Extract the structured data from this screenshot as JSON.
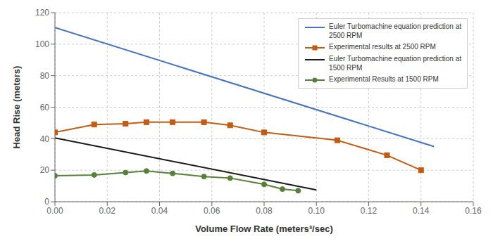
{
  "chart_data": {
    "type": "line",
    "xlabel": "Volume Flow Rate (meters³/sec)",
    "ylabel": "Head Rise (meters)",
    "xlim": [
      0.0,
      0.16
    ],
    "ylim": [
      0,
      120
    ],
    "xticks": [
      {
        "value": 0.0,
        "label": "0.00"
      },
      0.02,
      0.04,
      0.06,
      0.08,
      {
        "value": 0.1,
        "label": "0.10"
      },
      0.12,
      0.14,
      0.16
    ],
    "yticks": [
      0,
      20,
      40,
      60,
      80,
      100,
      120
    ],
    "grid": true,
    "legend": "upper right",
    "series": [
      {
        "name": "Euler Turbomachine equation prediction at\n2500 RPM",
        "color": "#4472C4",
        "marker": "none",
        "line_style": "solid",
        "x": [
          0.0,
          0.145
        ],
        "values": [
          110.5,
          35.0
        ]
      },
      {
        "name": "Experimental results at 2500 RPM",
        "color": "#C55A11",
        "marker": "square",
        "line_style": "solid",
        "x": [
          0.0,
          0.015,
          0.027,
          0.035,
          0.045,
          0.057,
          0.067,
          0.08,
          0.108,
          0.127,
          0.14
        ],
        "values": [
          44.0,
          49.0,
          49.5,
          50.5,
          50.5,
          50.5,
          48.5,
          44.0,
          39.0,
          29.5,
          20.0
        ]
      },
      {
        "name": "Euler Turbomachine equation prediction at\n1500 RPM",
        "color": "#1a1a1a",
        "marker": "none",
        "line_style": "solid",
        "x": [
          0.0,
          0.1
        ],
        "values": [
          40.5,
          7.5
        ]
      },
      {
        "name": "Experimental Results at 1500 RPM",
        "color": "#538135",
        "marker": "circle",
        "line_style": "solid",
        "x": [
          0.0,
          0.015,
          0.027,
          0.035,
          0.045,
          0.057,
          0.067,
          0.08,
          0.087,
          0.093
        ],
        "values": [
          16.5,
          17.0,
          18.5,
          19.5,
          18.0,
          16.0,
          15.0,
          11.0,
          8.0,
          7.0
        ]
      }
    ]
  }
}
